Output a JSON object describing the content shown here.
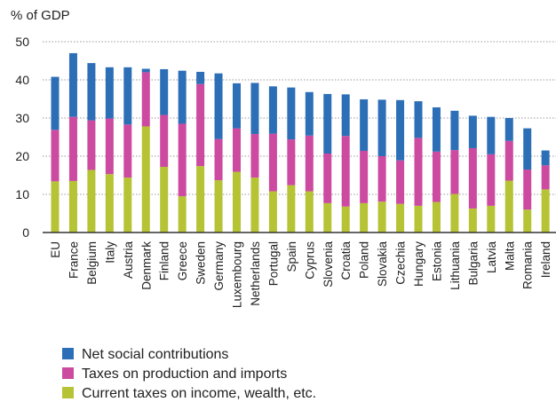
{
  "chart_data": {
    "type": "bar",
    "stacked": true,
    "title": "",
    "xlabel": "",
    "ylabel": "% of GDP",
    "ylim": [
      0,
      50
    ],
    "yticks": [
      0,
      10,
      20,
      30,
      40,
      50
    ],
    "grid": "horizontal dotted",
    "legend_position": "bottom",
    "categories": [
      "EU",
      "France",
      "Belgium",
      "Italy",
      "Austria",
      "Denmark",
      "Finland",
      "Greece",
      "Sweden",
      "Germany",
      "Luxembourg",
      "Netherlands",
      "Portugal",
      "Spain",
      "Cyprus",
      "Slovenia",
      "Croatia",
      "Poland",
      "Slovakia",
      "Czechia",
      "Hungary",
      "Estonia",
      "Lithuania",
      "Bulgaria",
      "Latvia",
      "Malta",
      "Romania",
      "Ireland"
    ],
    "series": [
      {
        "name": "Current taxes on income, wealth, etc.",
        "color": "#b5c334",
        "values": [
          13.4,
          13.5,
          16.4,
          15.3,
          14.4,
          27.8,
          17.2,
          9.5,
          17.4,
          13.7,
          15.9,
          14.4,
          10.8,
          12.4,
          10.8,
          7.7,
          6.8,
          7.7,
          8.1,
          7.5,
          7.0,
          8.0,
          10.1,
          6.3,
          7.0,
          13.6,
          6.0,
          11.3
        ]
      },
      {
        "name": "Taxes on production and imports",
        "color": "#cc4aa0",
        "values": [
          13.5,
          16.8,
          13.0,
          14.6,
          13.9,
          14.2,
          13.6,
          19.0,
          21.5,
          10.8,
          11.4,
          11.4,
          15.1,
          12.0,
          14.6,
          13.0,
          18.5,
          13.7,
          11.9,
          11.4,
          17.8,
          13.2,
          11.5,
          15.8,
          13.5,
          10.4,
          10.5,
          6.3
        ]
      },
      {
        "name": "Net social contributions",
        "color": "#2c6fb7",
        "values": [
          13.9,
          16.7,
          15.0,
          13.4,
          15.0,
          0.9,
          12.0,
          13.9,
          3.2,
          17.2,
          11.8,
          13.4,
          12.4,
          13.6,
          11.4,
          15.6,
          10.9,
          13.5,
          14.8,
          15.8,
          9.6,
          11.6,
          10.3,
          8.5,
          9.8,
          6.0,
          10.8,
          3.9
        ]
      }
    ]
  }
}
